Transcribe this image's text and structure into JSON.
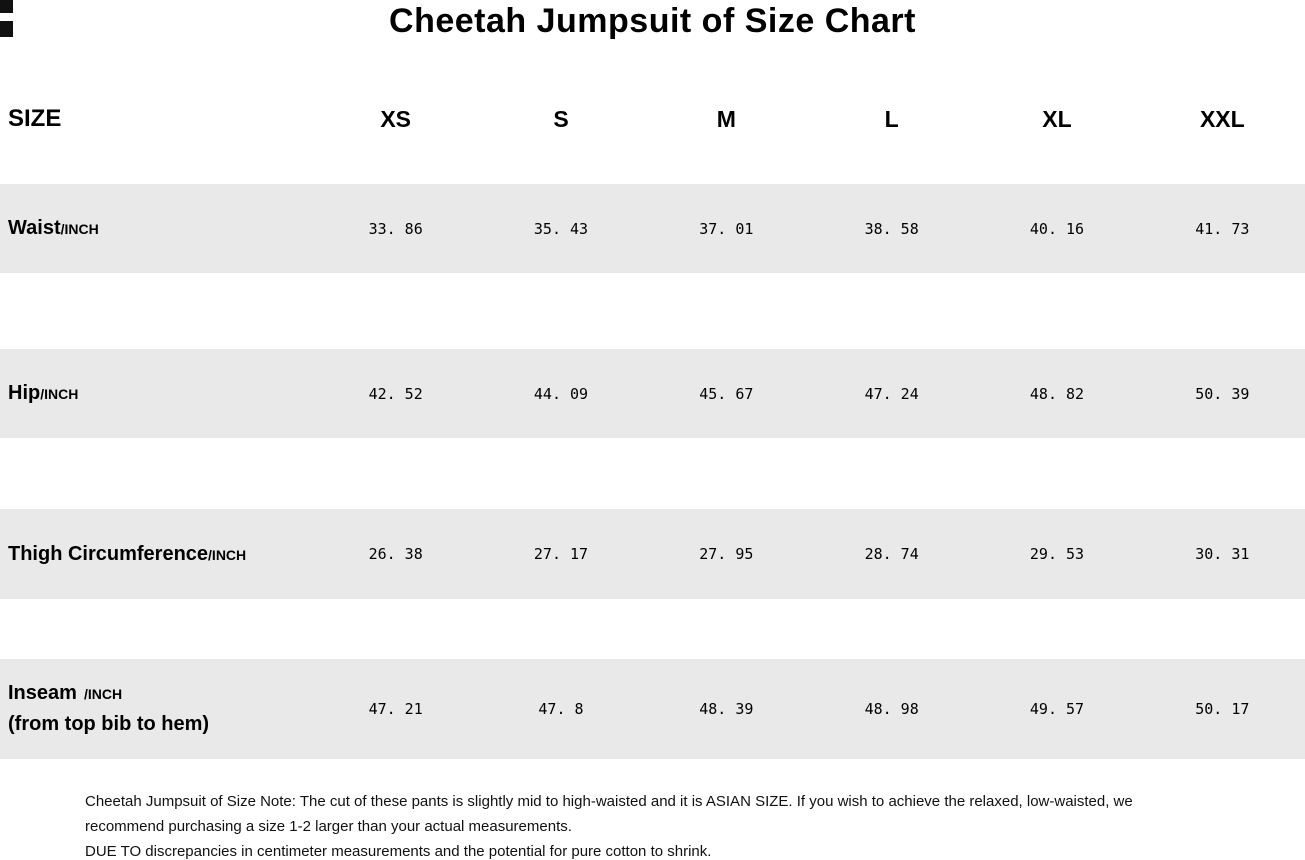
{
  "page": {
    "title": "Cheetah Jumpsuit of Size Chart"
  },
  "colors": {
    "row_band": "#e9e9e9",
    "text": "#000000"
  },
  "chart_data": {
    "type": "table",
    "title": "Cheetah Jumpsuit of Size Chart",
    "columns": [
      "SIZE",
      "XS",
      "S",
      "M",
      "L",
      "XL",
      "XXL"
    ],
    "rows": [
      {
        "label": "Waist",
        "unit": "/INCH",
        "values": [
          "33. 86",
          "35. 43",
          "37. 01",
          "38. 58",
          "40. 16",
          "41. 73"
        ]
      },
      {
        "label": "Hip",
        "unit": "/INCH",
        "values": [
          "42. 52",
          "44. 09",
          "45. 67",
          "47. 24",
          "48. 82",
          "50. 39"
        ]
      },
      {
        "label": "Thigh Circumference",
        "unit": "/INCH",
        "values": [
          "26. 38",
          "27. 17",
          "27. 95",
          "28. 74",
          "29. 53",
          "30. 31"
        ]
      },
      {
        "label": "Inseam",
        "unit": "/INCH",
        "sublabel": "(from top bib to hem)",
        "values": [
          "47. 21",
          "47. 8",
          "48. 39",
          "48. 98",
          "49. 57",
          "50. 17"
        ]
      }
    ]
  },
  "notes": {
    "note1": "Cheetah Jumpsuit of Size Note: The cut of these pants is slightly mid to high-waisted and it is ASIAN SIZE. If you wish to achieve the relaxed, low-waisted, we recommend purchasing a size 1-2 larger than your actual measurements.",
    "note2": "DUE TO discrepancies in centimeter measurements and the potential for pure cotton to shrink."
  }
}
